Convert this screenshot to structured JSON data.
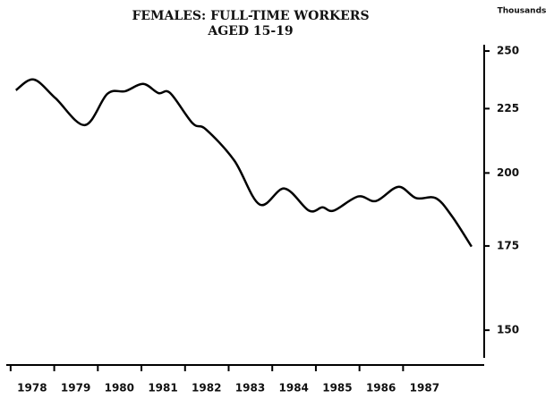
{
  "chart_data": {
    "type": "line",
    "title": "FEMALES: FULL-TIME WORKERS",
    "subtitle": "AGED 15-19",
    "y_unit_label": "Thousands",
    "x": [
      1978.12,
      1978.53,
      1979.03,
      1979.7,
      1980.22,
      1980.63,
      1981.04,
      1981.39,
      1981.66,
      1982.17,
      1982.48,
      1983.13,
      1983.71,
      1984.28,
      1984.84,
      1985.15,
      1985.41,
      1985.97,
      1986.38,
      1986.89,
      1987.3,
      1987.75,
      1988.12,
      1988.57
    ],
    "series": [
      {
        "name": "Females full-time workers aged 15-19",
        "color": "#000000",
        "values": [
          232.7,
          237.3,
          229.3,
          218.3,
          231.2,
          232.3,
          235.4,
          231.5,
          231.5,
          219.1,
          216.6,
          204.6,
          188.8,
          194.4,
          186.7,
          187.8,
          186.7,
          191.6,
          190.0,
          195.0,
          191.0,
          191.0,
          184.8,
          174.8
        ]
      }
    ],
    "xlim": [
      1977.9,
      1988.86
    ],
    "xticks": [
      {
        "value": 1978,
        "label": "1978"
      },
      {
        "value": 1979,
        "label": "1979"
      },
      {
        "value": 1980,
        "label": "1980"
      },
      {
        "value": 1981,
        "label": "1981"
      },
      {
        "value": 1982,
        "label": "1982"
      },
      {
        "value": 1983,
        "label": "1983"
      },
      {
        "value": 1984,
        "label": "1984"
      },
      {
        "value": 1985,
        "label": "1985"
      },
      {
        "value": 1986,
        "label": "1986"
      },
      {
        "value": 1987,
        "label": "1987"
      }
    ],
    "ylim": [
      142.6,
      252.9
    ],
    "yticks": [
      150,
      175,
      200,
      225,
      250
    ],
    "log_y": true,
    "grid": false,
    "y_axis_side": "right"
  }
}
